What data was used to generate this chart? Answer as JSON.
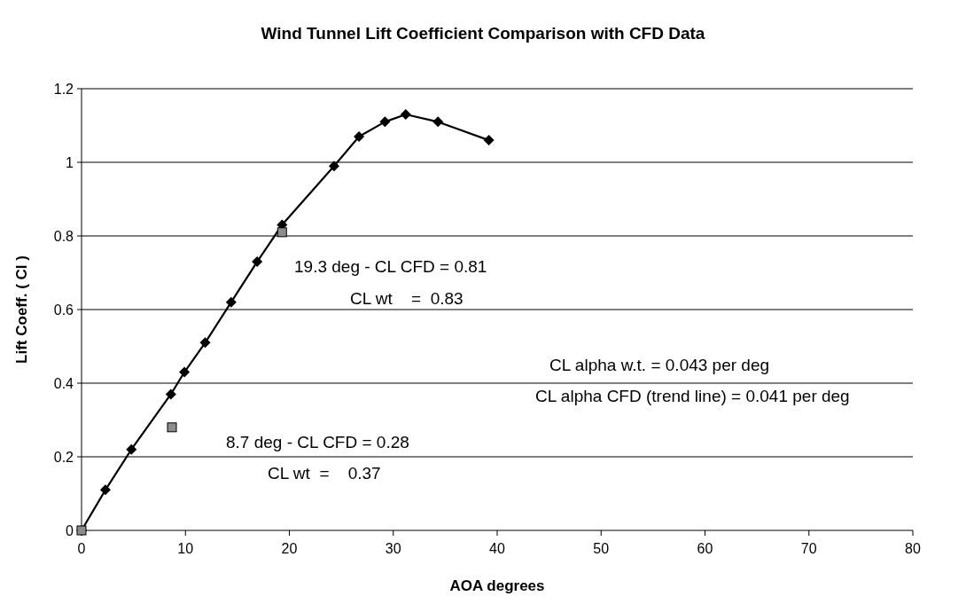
{
  "chart_data": {
    "type": "line",
    "title": "Wind Tunnel Lift Coefficient Comparison with CFD Data",
    "xlabel": "AOA degrees",
    "ylabel": "Lift Coeff. ( Cl )",
    "xlim": [
      0,
      80
    ],
    "xticks": [
      0,
      10,
      20,
      30,
      40,
      50,
      60,
      70,
      80
    ],
    "ylim": [
      0,
      1.2
    ],
    "yticks": [
      0,
      0.2,
      0.4,
      0.6,
      0.8,
      1,
      1.2
    ],
    "grid": "y",
    "series": [
      {
        "type": "line",
        "color": "#000000",
        "marker": "diamond",
        "x": [
          0,
          2.3,
          4.8,
          8.6,
          9.9,
          11.9,
          14.4,
          16.9,
          19.3,
          24.3,
          26.7,
          29.2,
          31.2,
          34.3,
          39.2
        ],
        "values": [
          0,
          0.11,
          0.22,
          0.37,
          0.43,
          0.51,
          0.62,
          0.73,
          0.83,
          0.99,
          1.07,
          1.11,
          1.13,
          1.11,
          1.06
        ]
      },
      {
        "type": "scatter",
        "color": "#8c8c8c",
        "marker": "square",
        "x": [
          0,
          8.7,
          19.3
        ],
        "values": [
          0,
          0.28,
          0.81
        ]
      }
    ],
    "annotations": [
      "19.3 deg - CL CFD = 0.81",
      "CL wt    =  0.83",
      "CL alpha w.t. = 0.043 per deg",
      "CL alpha CFD (trend line) = 0.041 per deg",
      "8.7 deg - CL CFD = 0.28",
      "CL wt  =    0.37"
    ]
  }
}
